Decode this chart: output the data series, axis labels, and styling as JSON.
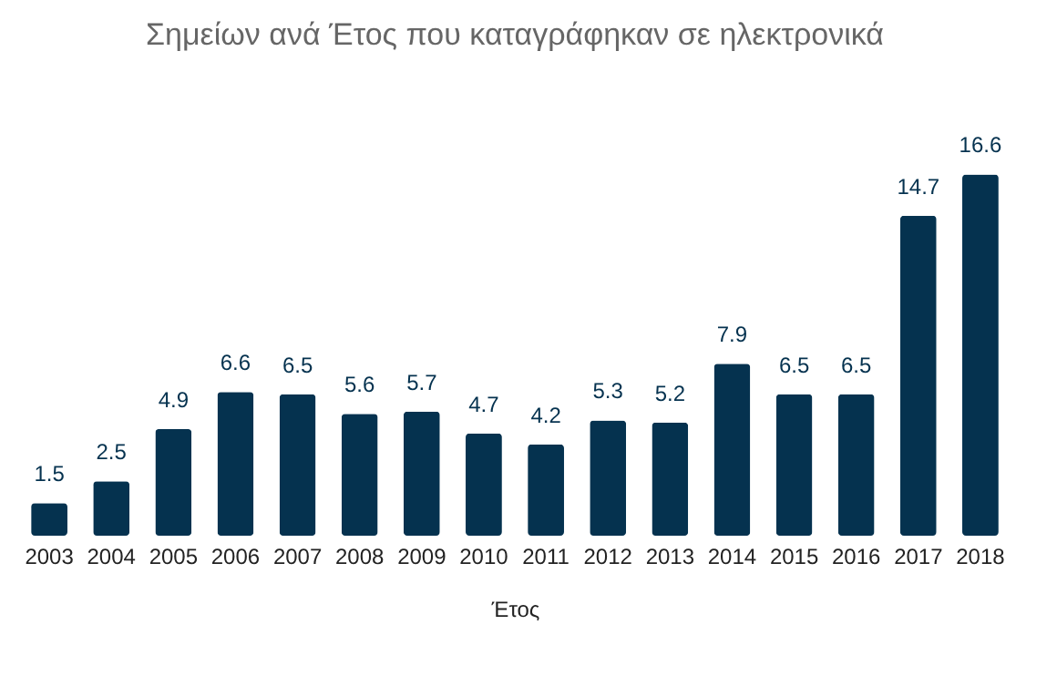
{
  "chart_data": {
    "type": "bar",
    "title": "Σημείων ανά Έτος που καταγράφηκαν σε ηλεκτρονικά",
    "xlabel": "Έτος",
    "categories": [
      "2003",
      "2004",
      "2005",
      "2006",
      "2007",
      "2008",
      "2009",
      "2010",
      "2011",
      "2012",
      "2013",
      "2014",
      "2015",
      "2016",
      "2017",
      "2018"
    ],
    "values": [
      1.5,
      2.5,
      4.9,
      6.6,
      6.5,
      5.6,
      5.7,
      4.7,
      4.2,
      5.3,
      5.2,
      7.9,
      6.5,
      6.5,
      14.7,
      16.6
    ],
    "color": "#05324f",
    "data_labels": true
  }
}
